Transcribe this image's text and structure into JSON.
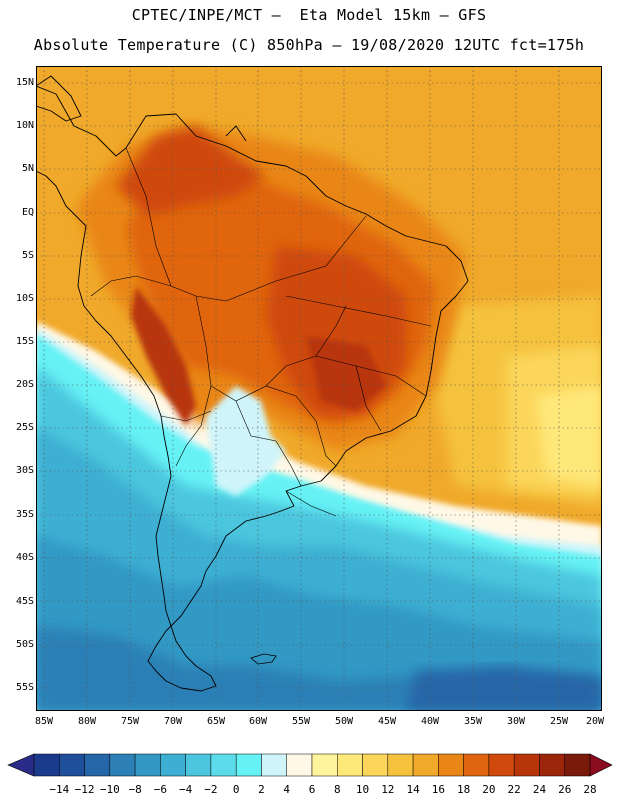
{
  "header": {
    "line1": "CPTEC/INPE/MCT –  Eta Model 15km – GFS",
    "line2": "Absolute Temperature (C) 850hPa – 19/08/2020 12UTC fct=175h"
  },
  "map": {
    "lat_labels": [
      "15N",
      "10N",
      "5N",
      "EQ",
      "5S",
      "10S",
      "15S",
      "20S",
      "25S",
      "30S",
      "35S",
      "40S",
      "45S",
      "50S",
      "55S"
    ],
    "lon_labels": [
      "85W",
      "80W",
      "75W",
      "70W",
      "65W",
      "60W",
      "55W",
      "50W",
      "45W",
      "40W",
      "35W",
      "30W",
      "25W",
      "20W"
    ]
  },
  "colorbar": {
    "labels": [
      "−14",
      "−12",
      "−10",
      "−8",
      "−6",
      "−4",
      "−2",
      "0",
      "2",
      "4",
      "6",
      "8",
      "10",
      "12",
      "14",
      "16",
      "18",
      "20",
      "22",
      "24",
      "26",
      "28"
    ],
    "colors": [
      "#1a3a8c",
      "#1f4f9a",
      "#2566a8",
      "#2c80b6",
      "#3398c4",
      "#3cafd2",
      "#4cc6de",
      "#5cdcea",
      "#66f2f5",
      "#cff5fa",
      "#fff8e6",
      "#fff39e",
      "#ffe87a",
      "#fbd65a",
      "#f5c23e",
      "#f0a92a",
      "#e98616",
      "#e06510",
      "#cf4a0c",
      "#b8350a",
      "#9c250a",
      "#7a1a0a"
    ],
    "under_color": "#2b2b8a",
    "over_color": "#8a0a1e"
  }
}
